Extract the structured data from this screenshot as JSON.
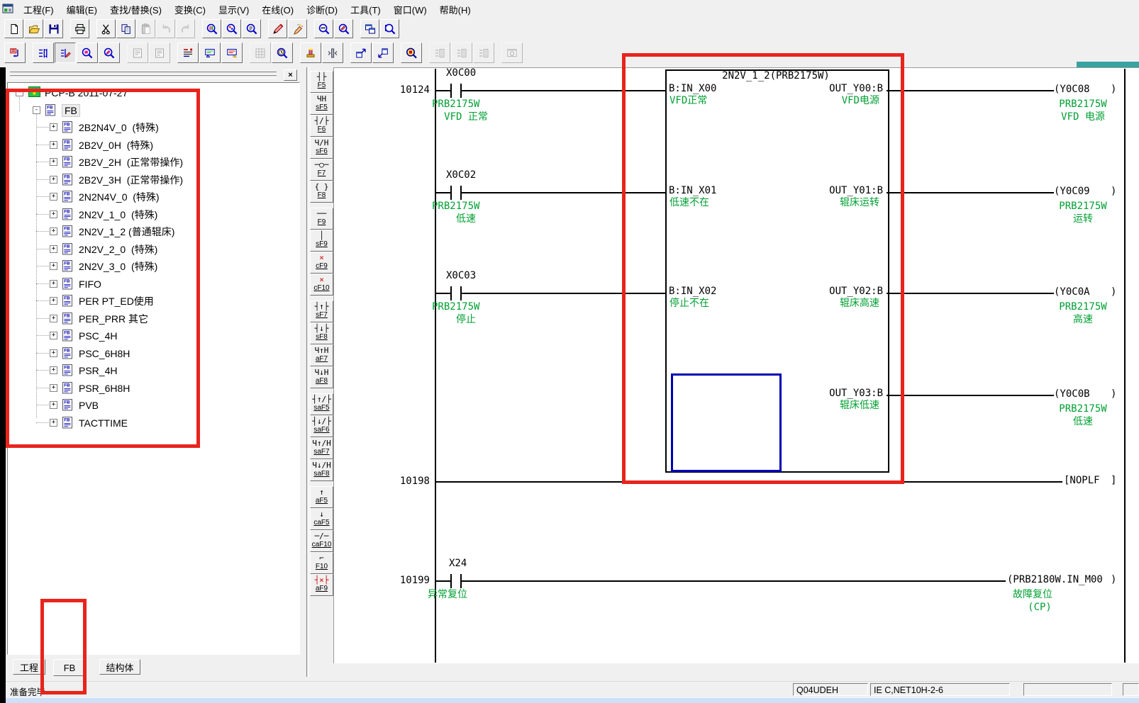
{
  "menu_bar": {
    "app_icon": "melsoft-app-icon",
    "items": [
      "工程(F)",
      "编辑(E)",
      "查找/替换(S)",
      "变换(C)",
      "显示(V)",
      "在线(O)",
      "诊断(D)",
      "工具(T)",
      "窗口(W)",
      "帮助(H)"
    ]
  },
  "toolbar_main": {
    "buttons": [
      {
        "name": "new-project-button",
        "icon": "new-doc-icon",
        "group": 0
      },
      {
        "name": "open-project-button",
        "icon": "open-folder-icon",
        "group": 0
      },
      {
        "name": "save-project-button",
        "icon": "save-disk-icon",
        "group": 0
      },
      {
        "name": "print-button",
        "icon": "printer-icon",
        "group": 1
      },
      {
        "name": "cut-button",
        "icon": "scissors-icon",
        "group": 2
      },
      {
        "name": "copy-button",
        "icon": "copy-icon",
        "group": 2
      },
      {
        "name": "paste-button",
        "icon": "paste-icon",
        "group": 2,
        "disabled": true
      },
      {
        "name": "undo-button",
        "icon": "undo-arrow-icon",
        "group": 2,
        "disabled": true
      },
      {
        "name": "redo-button",
        "icon": "redo-arrow-icon",
        "group": 2,
        "disabled": true
      },
      {
        "name": "find-button",
        "icon": "magnifier-color-icon",
        "group": 3
      },
      {
        "name": "find-device-button",
        "icon": "magnifier-device-icon",
        "group": 3
      },
      {
        "name": "find-instruction-button",
        "icon": "magnifier-text-icon",
        "group": 3
      },
      {
        "name": "write-mode-button",
        "icon": "pencil-red-icon",
        "group": 4
      },
      {
        "name": "insert-mode-button",
        "icon": "pencil-star-icon",
        "group": 4
      },
      {
        "name": "monitor-mode-button",
        "icon": "magnifier-monitor-icon",
        "group": 5
      },
      {
        "name": "monitor-write-mode-button",
        "icon": "magnifier-write-icon",
        "group": 5
      },
      {
        "name": "tile-window-button",
        "icon": "window-split-icon",
        "group": 6
      },
      {
        "name": "window-find-button",
        "icon": "window-magnifier-icon",
        "group": 6
      }
    ]
  },
  "toolbar_edit": {
    "buttons": [
      {
        "name": "fb-ladder-convert-button",
        "icon": "convert-icon",
        "group": 0
      },
      {
        "name": "ladder-symbolic-button",
        "icon": "ladder-tree-icon",
        "group": 1
      },
      {
        "name": "ladder-edit-mode-button",
        "icon": "ladder-edit-icon",
        "group": 1,
        "pressed": true
      },
      {
        "name": "device-find-button",
        "icon": "magnifier-pink-icon",
        "group": 1
      },
      {
        "name": "device-find-write-button",
        "icon": "magnifier-pencil-icon",
        "group": 1
      },
      {
        "name": "device-comment-button",
        "icon": "comment-doc-icon",
        "group": 2,
        "disabled": true
      },
      {
        "name": "statement-button",
        "icon": "statement-doc-icon",
        "group": 2,
        "disabled": true
      },
      {
        "name": "device-test-button",
        "icon": "device-test-icon",
        "group": 3
      },
      {
        "name": "comment-display-button",
        "icon": "comment-display-icon",
        "group": 3
      },
      {
        "name": "note-display-button",
        "icon": "note-display-icon",
        "group": 3
      },
      {
        "name": "array-window-button",
        "icon": "grid-icon",
        "group": 4,
        "disabled": true
      },
      {
        "name": "time-chart-monitor-button",
        "icon": "clock-magnifier-icon",
        "group": 4
      },
      {
        "name": "stamp-button",
        "icon": "stamp-icon",
        "group": 5
      },
      {
        "name": "column-insert-button",
        "icon": "column-icon",
        "group": 5
      },
      {
        "name": "open-fb-window-button",
        "icon": "window-jump-up-icon",
        "group": 6
      },
      {
        "name": "back-window-button",
        "icon": "window-jump-down-icon",
        "group": 6
      },
      {
        "name": "circuit-trace-button",
        "icon": "magnifier-yellow-icon",
        "group": 7
      },
      {
        "name": "block-monitor-1-button",
        "icon": "ladder-block-icon",
        "group": 8,
        "disabled": true
      },
      {
        "name": "block-monitor-2-button",
        "icon": "ladder-block-icon",
        "group": 8,
        "disabled": true
      },
      {
        "name": "block-monitor-3-button",
        "icon": "ladder-block-icon",
        "group": 8,
        "disabled": true
      },
      {
        "name": "monitor-window-button",
        "icon": "monitor-window-icon",
        "group": 9,
        "disabled": true
      }
    ]
  },
  "ladder_toolbar": {
    "buttons": [
      {
        "key": "F5",
        "name": "open-contact-tool",
        "glyph": "┤├",
        "group": 0
      },
      {
        "key": "sF5",
        "name": "open-branch-tool",
        "glyph": "ЧН",
        "group": 0
      },
      {
        "key": "F6",
        "name": "closed-contact-tool",
        "glyph": "┤/├",
        "group": 0
      },
      {
        "key": "sF6",
        "name": "closed-branch-tool",
        "glyph": "Ч/Н",
        "group": 0
      },
      {
        "key": "F7",
        "name": "coil-tool",
        "glyph": "─○─",
        "group": 0
      },
      {
        "key": "F8",
        "name": "application-instruction-tool",
        "glyph": "{ }",
        "group": 0
      },
      {
        "key": "F9",
        "name": "horizontal-line-tool",
        "glyph": "──",
        "group": 1
      },
      {
        "key": "sF9",
        "name": "vertical-line-tool",
        "glyph": "│",
        "group": 1
      },
      {
        "key": "cF9",
        "name": "delete-horizontal-line-tool",
        "glyph": "×",
        "color": "#d40000",
        "group": 1
      },
      {
        "key": "cF10",
        "name": "delete-vertical-line-tool",
        "glyph": "×",
        "color": "#d40000",
        "group": 1
      },
      {
        "key": "sF7",
        "name": "rising-pulse-contact-tool",
        "glyph": "┤↑├",
        "group": 2
      },
      {
        "key": "sF8",
        "name": "falling-pulse-contact-tool",
        "glyph": "┤↓├",
        "group": 2
      },
      {
        "key": "aF7",
        "name": "rising-pulse-branch-tool",
        "glyph": "Ч↑Н",
        "group": 2
      },
      {
        "key": "aF8",
        "name": "falling-pulse-branch-tool",
        "glyph": "Ч↓Н",
        "group": 2
      },
      {
        "key": "saF5",
        "name": "rising-pulse-closed-contact-tool",
        "glyph": "┤↑/├",
        "group": 3
      },
      {
        "key": "saF6",
        "name": "falling-pulse-closed-contact-tool",
        "glyph": "┤↓/├",
        "group": 3
      },
      {
        "key": "saF7",
        "name": "rising-pulse-closed-branch-tool",
        "glyph": "Ч↑/Н",
        "group": 3
      },
      {
        "key": "saF8",
        "name": "falling-pulse-closed-branch-tool",
        "glyph": "Ч↓/Н",
        "group": 3
      },
      {
        "key": "aF5",
        "name": "rising-edge-tool",
        "glyph": "↑",
        "group": 4
      },
      {
        "key": "caF5",
        "name": "falling-edge-tool",
        "glyph": "↓",
        "group": 4
      },
      {
        "key": "caF10",
        "name": "delete-edge-tool",
        "glyph": "─/─",
        "group": 4
      },
      {
        "key": "F10",
        "name": "step-line-tool",
        "glyph": "⌐",
        "group": 4
      },
      {
        "key": "aF9",
        "name": "delete-contact-tool",
        "glyph": "┤×├",
        "color": "#d40000",
        "group": 4
      }
    ]
  },
  "project_tree": {
    "close_glyph": "×",
    "root": {
      "label": "PCP-B 2011-07-27",
      "icon": "project-icon",
      "expander": "-"
    },
    "folder": {
      "label": "FB",
      "icon": "fb-page-icon",
      "expander": "-",
      "selected": true
    },
    "items": [
      "2B2N4V_0  (特殊)",
      "2B2V_0H  (特殊)",
      "2B2V_2H  (正常带操作)",
      "2B2V_3H  (正常带操作)",
      "2N2N4V_0  (特殊)",
      "2N2V_1_0  (特殊)",
      "2N2V_1_2 (普通辊床)",
      "2N2V_2_0  (特殊)",
      "2N2V_3_0  (特殊)",
      "FIFO",
      "PER PT_ED使用",
      "PER_PRR 其它",
      "PSC_4H",
      "PSC_6H8H",
      "PSR_4H",
      "PSR_6H8H",
      "PVB",
      "TACTTIME"
    ]
  },
  "view_tabs": {
    "items": [
      {
        "label": "工程",
        "active": false
      },
      {
        "label": "FB",
        "active": true
      },
      {
        "label": "结构体",
        "active": false
      }
    ]
  },
  "ladder": {
    "function_block": {
      "title": "2N2V_1_2(PRB2175W)",
      "inputs": [
        {
          "port": "B:IN_X00",
          "comment": "VFD正常"
        },
        {
          "port": "B:IN_X01",
          "comment": "低速不在"
        },
        {
          "port": "B:IN_X02",
          "comment": "停止不在"
        }
      ],
      "outputs": [
        {
          "port": "OUT_Y00:B",
          "comment": "VFD电源"
        },
        {
          "port": "OUT_Y01:B",
          "comment": "辊床运转"
        },
        {
          "port": "OUT_Y02:B",
          "comment": "辊床高速"
        },
        {
          "port": "OUT_Y03:B",
          "comment": "辊床低速"
        }
      ]
    },
    "rungs": [
      {
        "number": "10124",
        "contact": {
          "device": "X0C00",
          "comment_lines": [
            "PRB2175W",
            "VFD 正常"
          ]
        },
        "coil": {
          "device": "Y0C08",
          "comment_lines": [
            "PRB2175W",
            "VFD 电源"
          ]
        }
      },
      {
        "contact": {
          "device": "X0C02",
          "comment_lines": [
            "PRB2175W",
            "低速"
          ]
        },
        "coil": {
          "device": "Y0C09",
          "comment_lines": [
            "PRB2175W",
            "运转"
          ]
        }
      },
      {
        "contact": {
          "device": "X0C03",
          "comment_lines": [
            "PRB2175W",
            "停止"
          ]
        },
        "coil": {
          "device": "Y0C0A",
          "comment_lines": [
            "PRB2175W",
            "高速"
          ]
        }
      },
      {
        "coil": {
          "device": "Y0C0B",
          "comment_lines": [
            "PRB2175W",
            "低速"
          ]
        }
      },
      {
        "number": "10198",
        "instruction": "NOPLF"
      },
      {
        "number": "10199",
        "contact": {
          "device": "X24",
          "comment_lines": [
            "异常复位"
          ]
        },
        "coil": {
          "device": "PRB2180W.IN_M00",
          "comment_lines": [
            "故障复位",
            "(CP)"
          ]
        }
      }
    ]
  },
  "status_bar": {
    "ready": "准备完毕",
    "cpu_type": "Q04UDEH",
    "connection": "IE C,NET10H-2-6"
  },
  "colors": {
    "comment_green": "#00a032",
    "wire_black": "#000000",
    "annotation_red": "#e8241c",
    "selection_blue": "#0000b4",
    "taskbar_blue": "#cde0f7",
    "mdi_teal": "#38a3a0"
  }
}
